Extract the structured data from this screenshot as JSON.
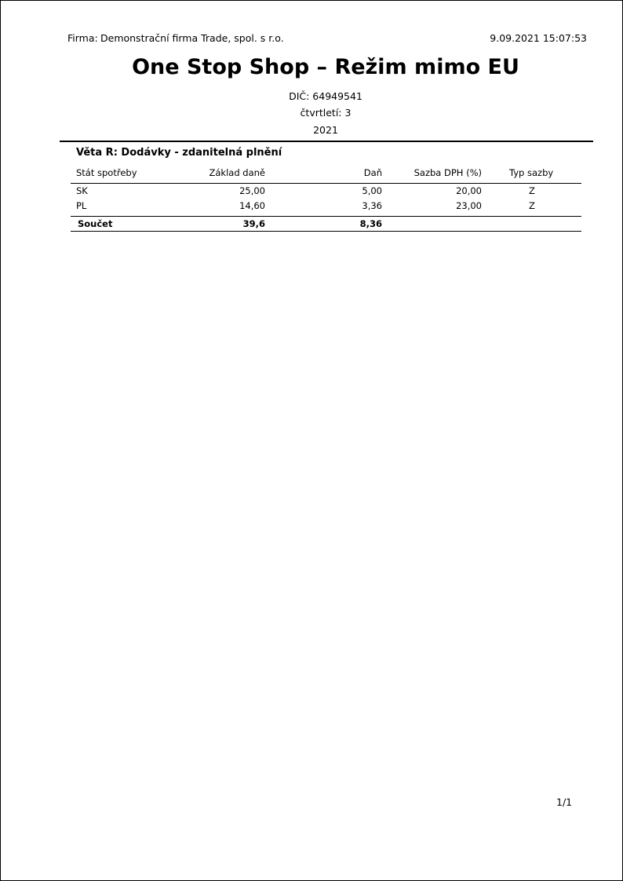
{
  "header": {
    "firm_label": "Firma:",
    "firm_name": "Demonstrační firma Trade, spol. s r.o.",
    "datetime": "9.09.2021 15:07:53"
  },
  "title": "One Stop Shop – Režim mimo EU",
  "dic": "DIČ: 64949541",
  "quarter": "čtvrtletí: 3",
  "year": "2021",
  "section": {
    "title": "Věta R: Dodávky - zdanitelná plnění",
    "columns": [
      "Stát spotřeby",
      "Základ daně",
      "Daň",
      "Sazba DPH (%)",
      "Typ sazby"
    ],
    "rows": [
      [
        "SK",
        "25,00",
        "5,00",
        "20,00",
        "Z"
      ],
      [
        "PL",
        "14,60",
        "3,36",
        "23,00",
        "Z"
      ]
    ],
    "total": {
      "label": "Součet",
      "base": "39,6",
      "tax": "8,36"
    }
  },
  "footer": {
    "page": "1/1"
  }
}
